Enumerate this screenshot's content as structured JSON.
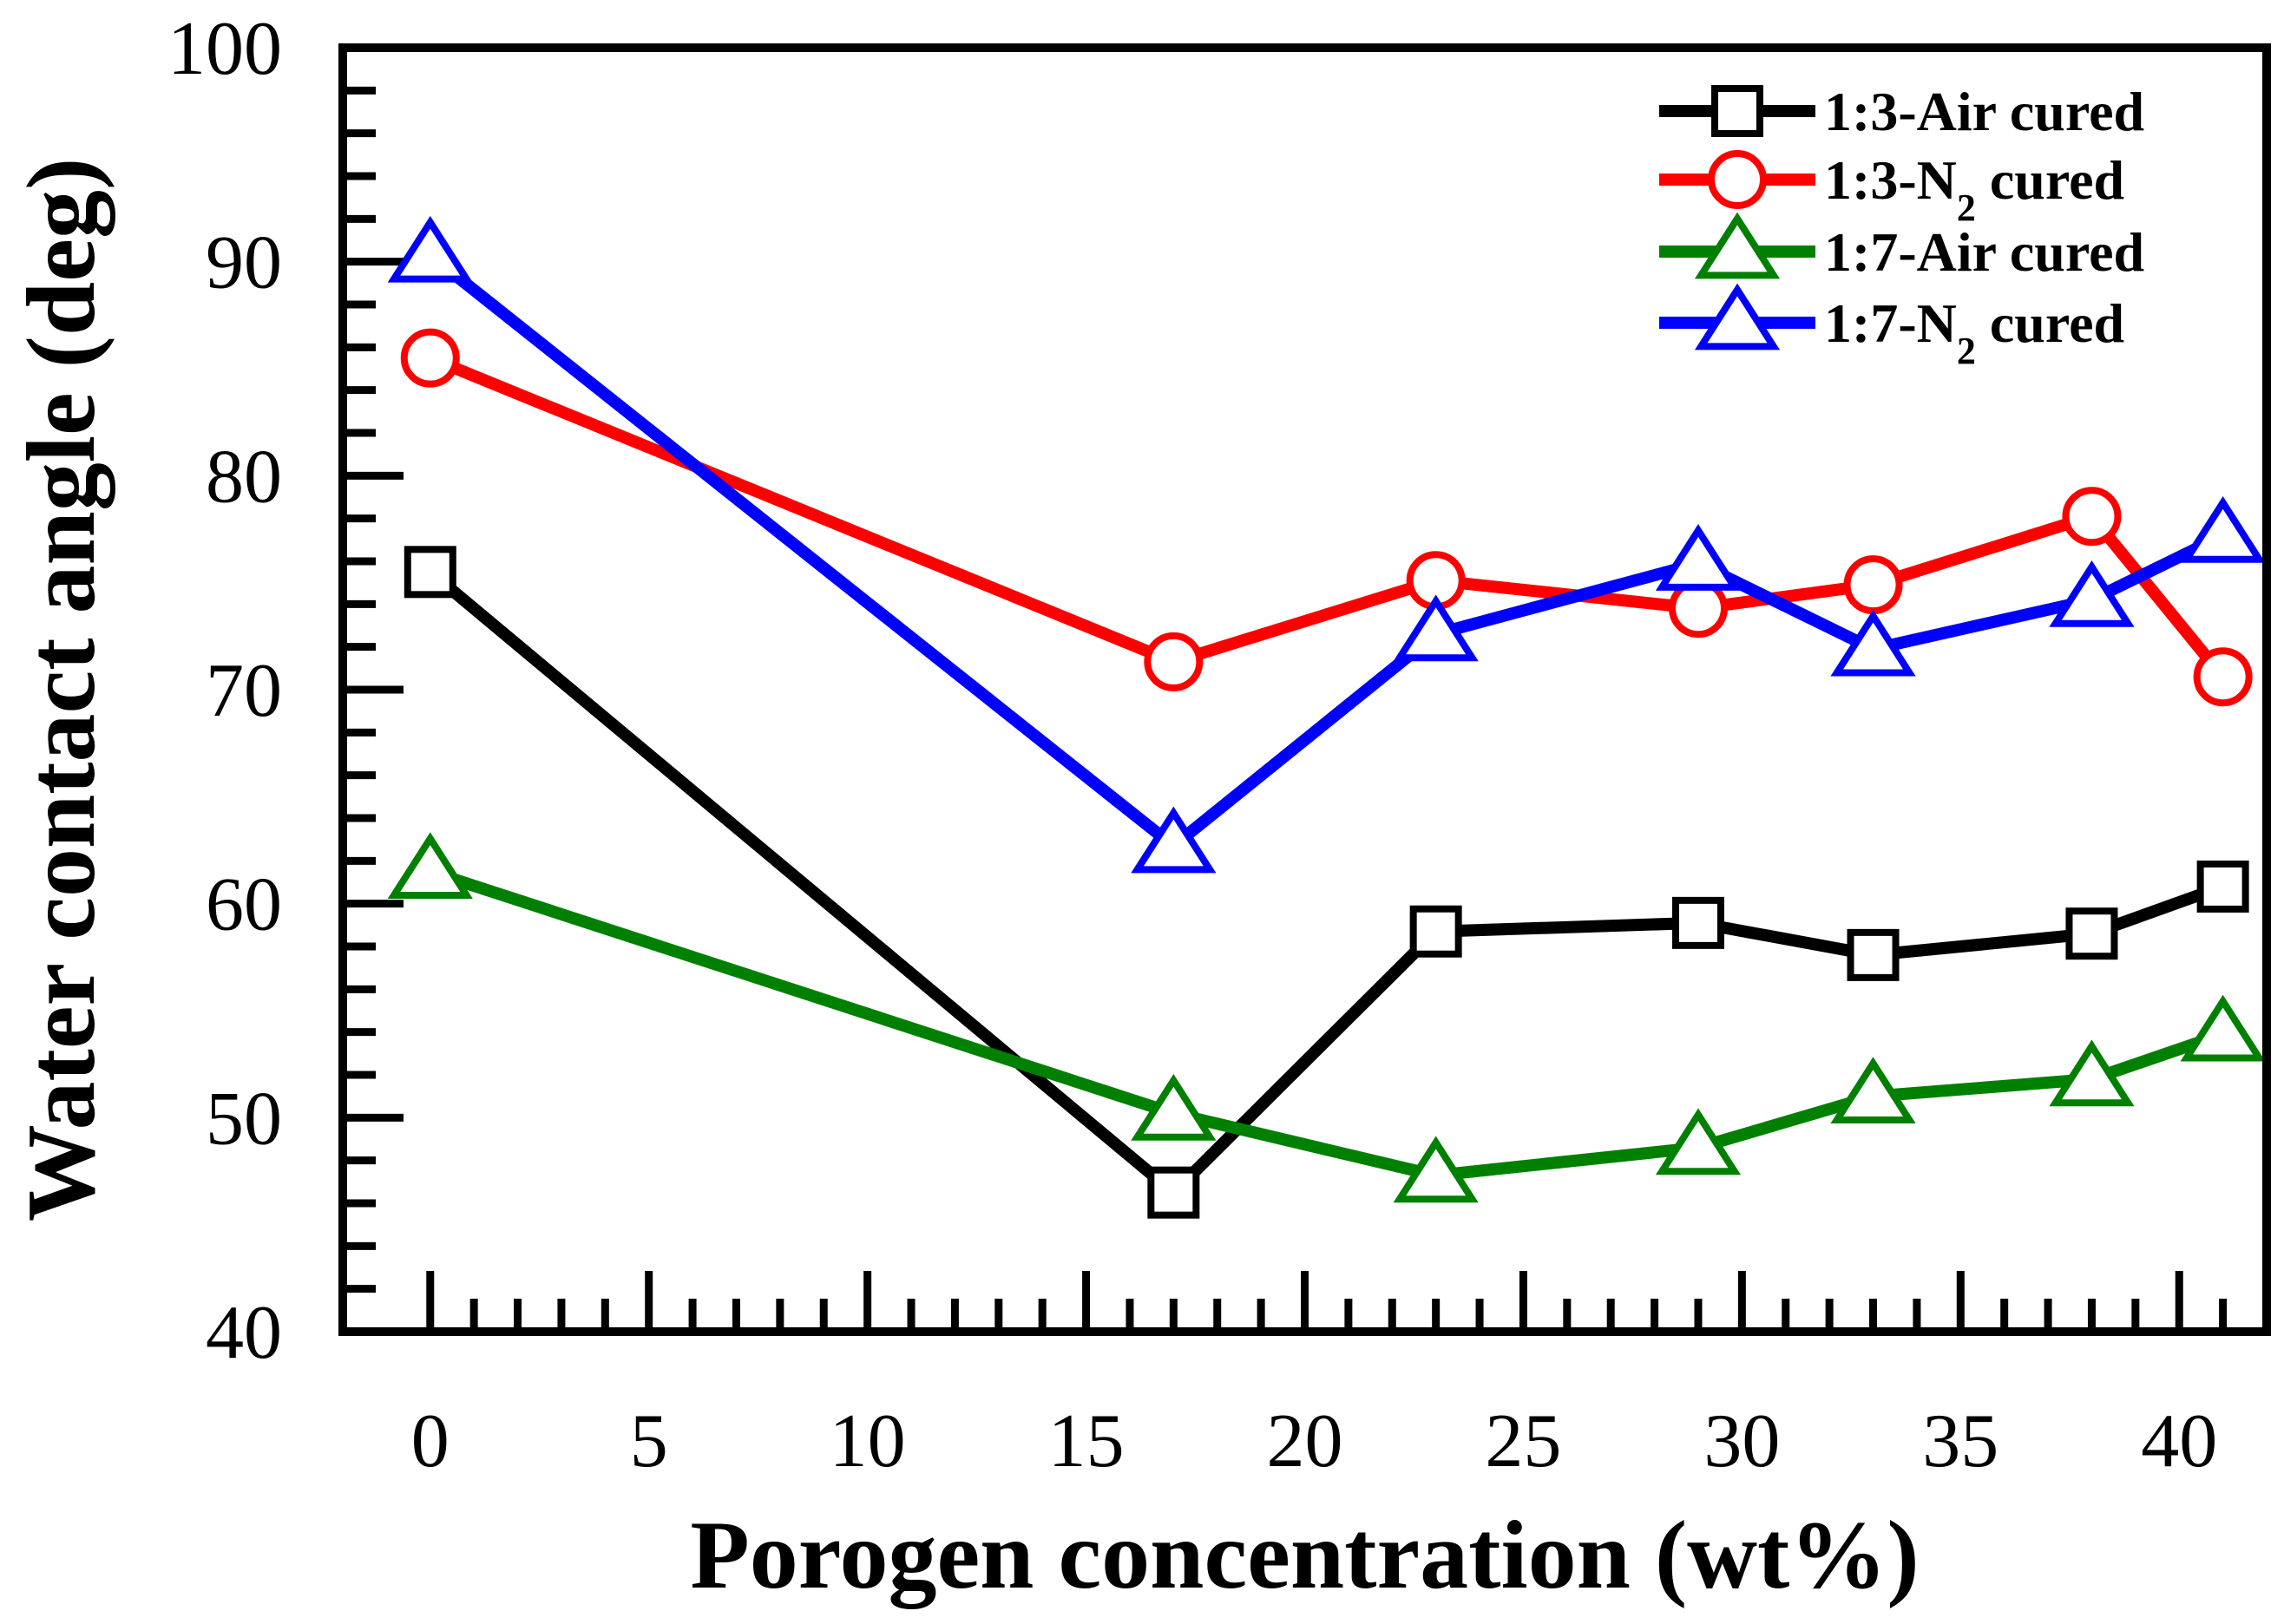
{
  "chart_data": {
    "type": "line",
    "title": "",
    "xlabel": "Porogen concentration (wt%)",
    "ylabel": "Water contact angle (deg)",
    "xlim": [
      -2,
      42
    ],
    "ylim": [
      40,
      100
    ],
    "xticks": [
      0,
      5,
      10,
      15,
      20,
      25,
      30,
      35,
      40
    ],
    "yticks": [
      40,
      50,
      60,
      70,
      80,
      90,
      100
    ],
    "grid": false,
    "legend_position": "top-right",
    "series": [
      {
        "name": "1:3-Air cured",
        "label_main": "1:3-Air cured",
        "label_sub": "",
        "label_tail": "",
        "color": "#000000",
        "marker": "square",
        "x": [
          0,
          17,
          23,
          29,
          33,
          38,
          41
        ],
        "y": [
          75.5,
          46.5,
          58.7,
          59.1,
          57.6,
          58.6,
          60.8
        ]
      },
      {
        "name": "1:3-N2 cured",
        "label_main": "1:3-N",
        "label_sub": "2",
        "label_tail": " cured",
        "color": "#ff0000",
        "marker": "circle",
        "x": [
          0,
          17,
          23,
          29,
          33,
          38,
          41
        ],
        "y": [
          85.5,
          71.3,
          75.1,
          73.8,
          74.9,
          78.1,
          70.6
        ]
      },
      {
        "name": "1:7-Air cured",
        "label_main": "1:7-Air cured",
        "label_sub": "",
        "label_tail": "",
        "color": "#008000",
        "marker": "triangle",
        "x": [
          0,
          17,
          23,
          29,
          33,
          38,
          41
        ],
        "y": [
          61.5,
          50.2,
          47.3,
          48.6,
          51.0,
          51.8,
          53.9
        ]
      },
      {
        "name": "1:7-N2 cured",
        "label_main": "1:7-N",
        "label_sub": "2",
        "label_tail": " cured",
        "color": "#0000ff",
        "marker": "triangle",
        "x": [
          0,
          17,
          23,
          29,
          33,
          38,
          41
        ],
        "y": [
          90.3,
          62.7,
          72.6,
          75.9,
          71.9,
          74.2,
          77.2
        ]
      }
    ]
  }
}
